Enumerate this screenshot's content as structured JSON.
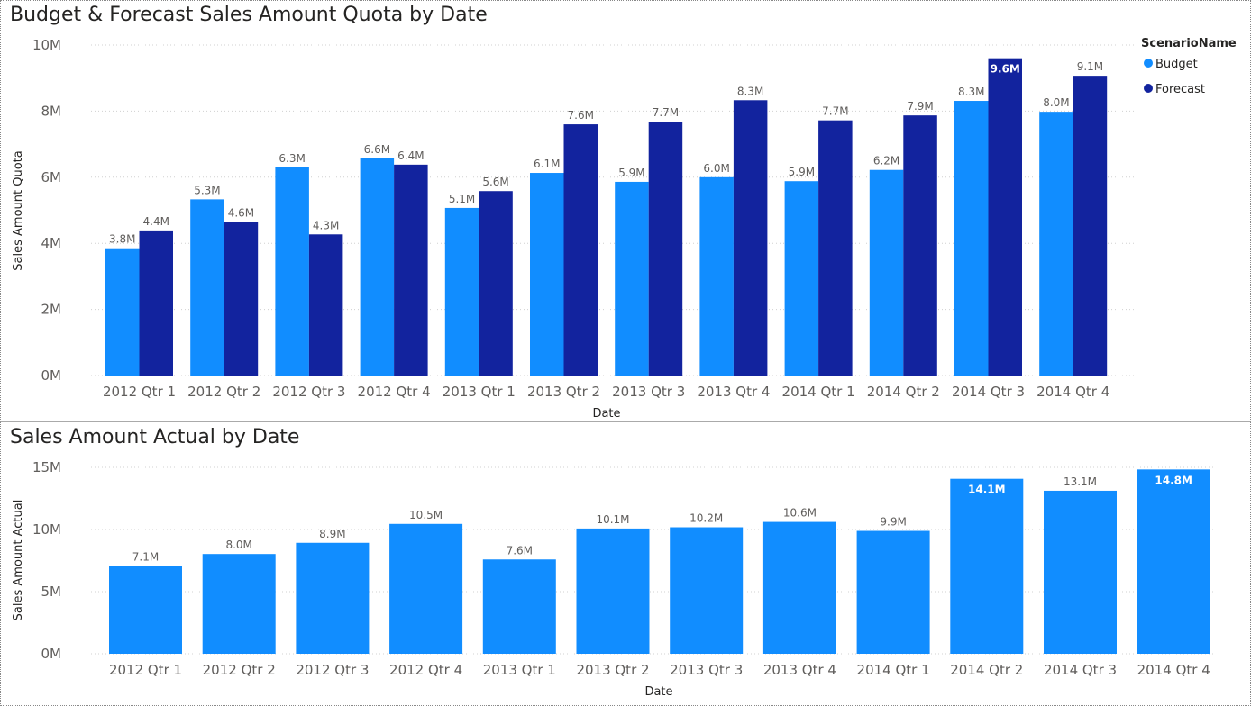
{
  "chart_data": [
    {
      "type": "bar",
      "title": "Budget & Forecast Sales Amount Quota by Date",
      "xlabel": "Date",
      "ylabel": "Sales Amount Quota",
      "ylim": [
        0,
        10000000
      ],
      "yticks": [
        "0M",
        "2M",
        "4M",
        "6M",
        "8M",
        "10M"
      ],
      "grid": true,
      "legend": {
        "title": "ScenarioName",
        "placement": "top-right"
      },
      "categories": [
        "2012 Qtr 1",
        "2012 Qtr 2",
        "2012 Qtr 3",
        "2012 Qtr 4",
        "2013 Qtr 1",
        "2013 Qtr 2",
        "2013 Qtr 3",
        "2013 Qtr 4",
        "2014 Qtr 1",
        "2014 Qtr 2",
        "2014 Qtr 3",
        "2014 Qtr 4"
      ],
      "series": [
        {
          "name": "Budget",
          "color": "#118DFF",
          "values": [
            3850000,
            5330000,
            6300000,
            6570000,
            5070000,
            6130000,
            5860000,
            6000000,
            5880000,
            6220000,
            8310000,
            7980000
          ],
          "labels": [
            "3.8M",
            "5.3M",
            "6.3M",
            "6.6M",
            "5.1M",
            "6.1M",
            "5.9M",
            "6.0M",
            "5.9M",
            "6.2M",
            "8.3M",
            "8.0M"
          ]
        },
        {
          "name": "Forecast",
          "color": "#12239E",
          "values": [
            4390000,
            4640000,
            4270000,
            6380000,
            5580000,
            7600000,
            7680000,
            8330000,
            7720000,
            7870000,
            9600000,
            9070000
          ],
          "labels": [
            "4.4M",
            "4.6M",
            "4.3M",
            "6.4M",
            "5.6M",
            "7.6M",
            "7.7M",
            "8.3M",
            "7.7M",
            "7.9M",
            "9.6M",
            "9.1M"
          ]
        }
      ]
    },
    {
      "type": "bar",
      "title": "Sales Amount Actual by Date",
      "xlabel": "Date",
      "ylabel": "Sales Amount Actual",
      "ylim": [
        0,
        15000000
      ],
      "yticks": [
        "0M",
        "5M",
        "10M",
        "15M"
      ],
      "grid": true,
      "categories": [
        "2012 Qtr 1",
        "2012 Qtr 2",
        "2012 Qtr 3",
        "2012 Qtr 4",
        "2013 Qtr 1",
        "2013 Qtr 2",
        "2013 Qtr 3",
        "2013 Qtr 4",
        "2014 Qtr 1",
        "2014 Qtr 2",
        "2014 Qtr 3",
        "2014 Qtr 4"
      ],
      "series": [
        {
          "color": "#118DFF",
          "values": [
            7070000,
            8030000,
            8930000,
            10450000,
            7590000,
            10080000,
            10180000,
            10610000,
            9890000,
            14080000,
            13120000,
            14830000
          ],
          "labels": [
            "7.1M",
            "8.0M",
            "8.9M",
            "10.5M",
            "7.6M",
            "10.1M",
            "10.2M",
            "10.6M",
            "9.9M",
            "14.1M",
            "13.1M",
            "14.8M"
          ]
        }
      ]
    }
  ]
}
